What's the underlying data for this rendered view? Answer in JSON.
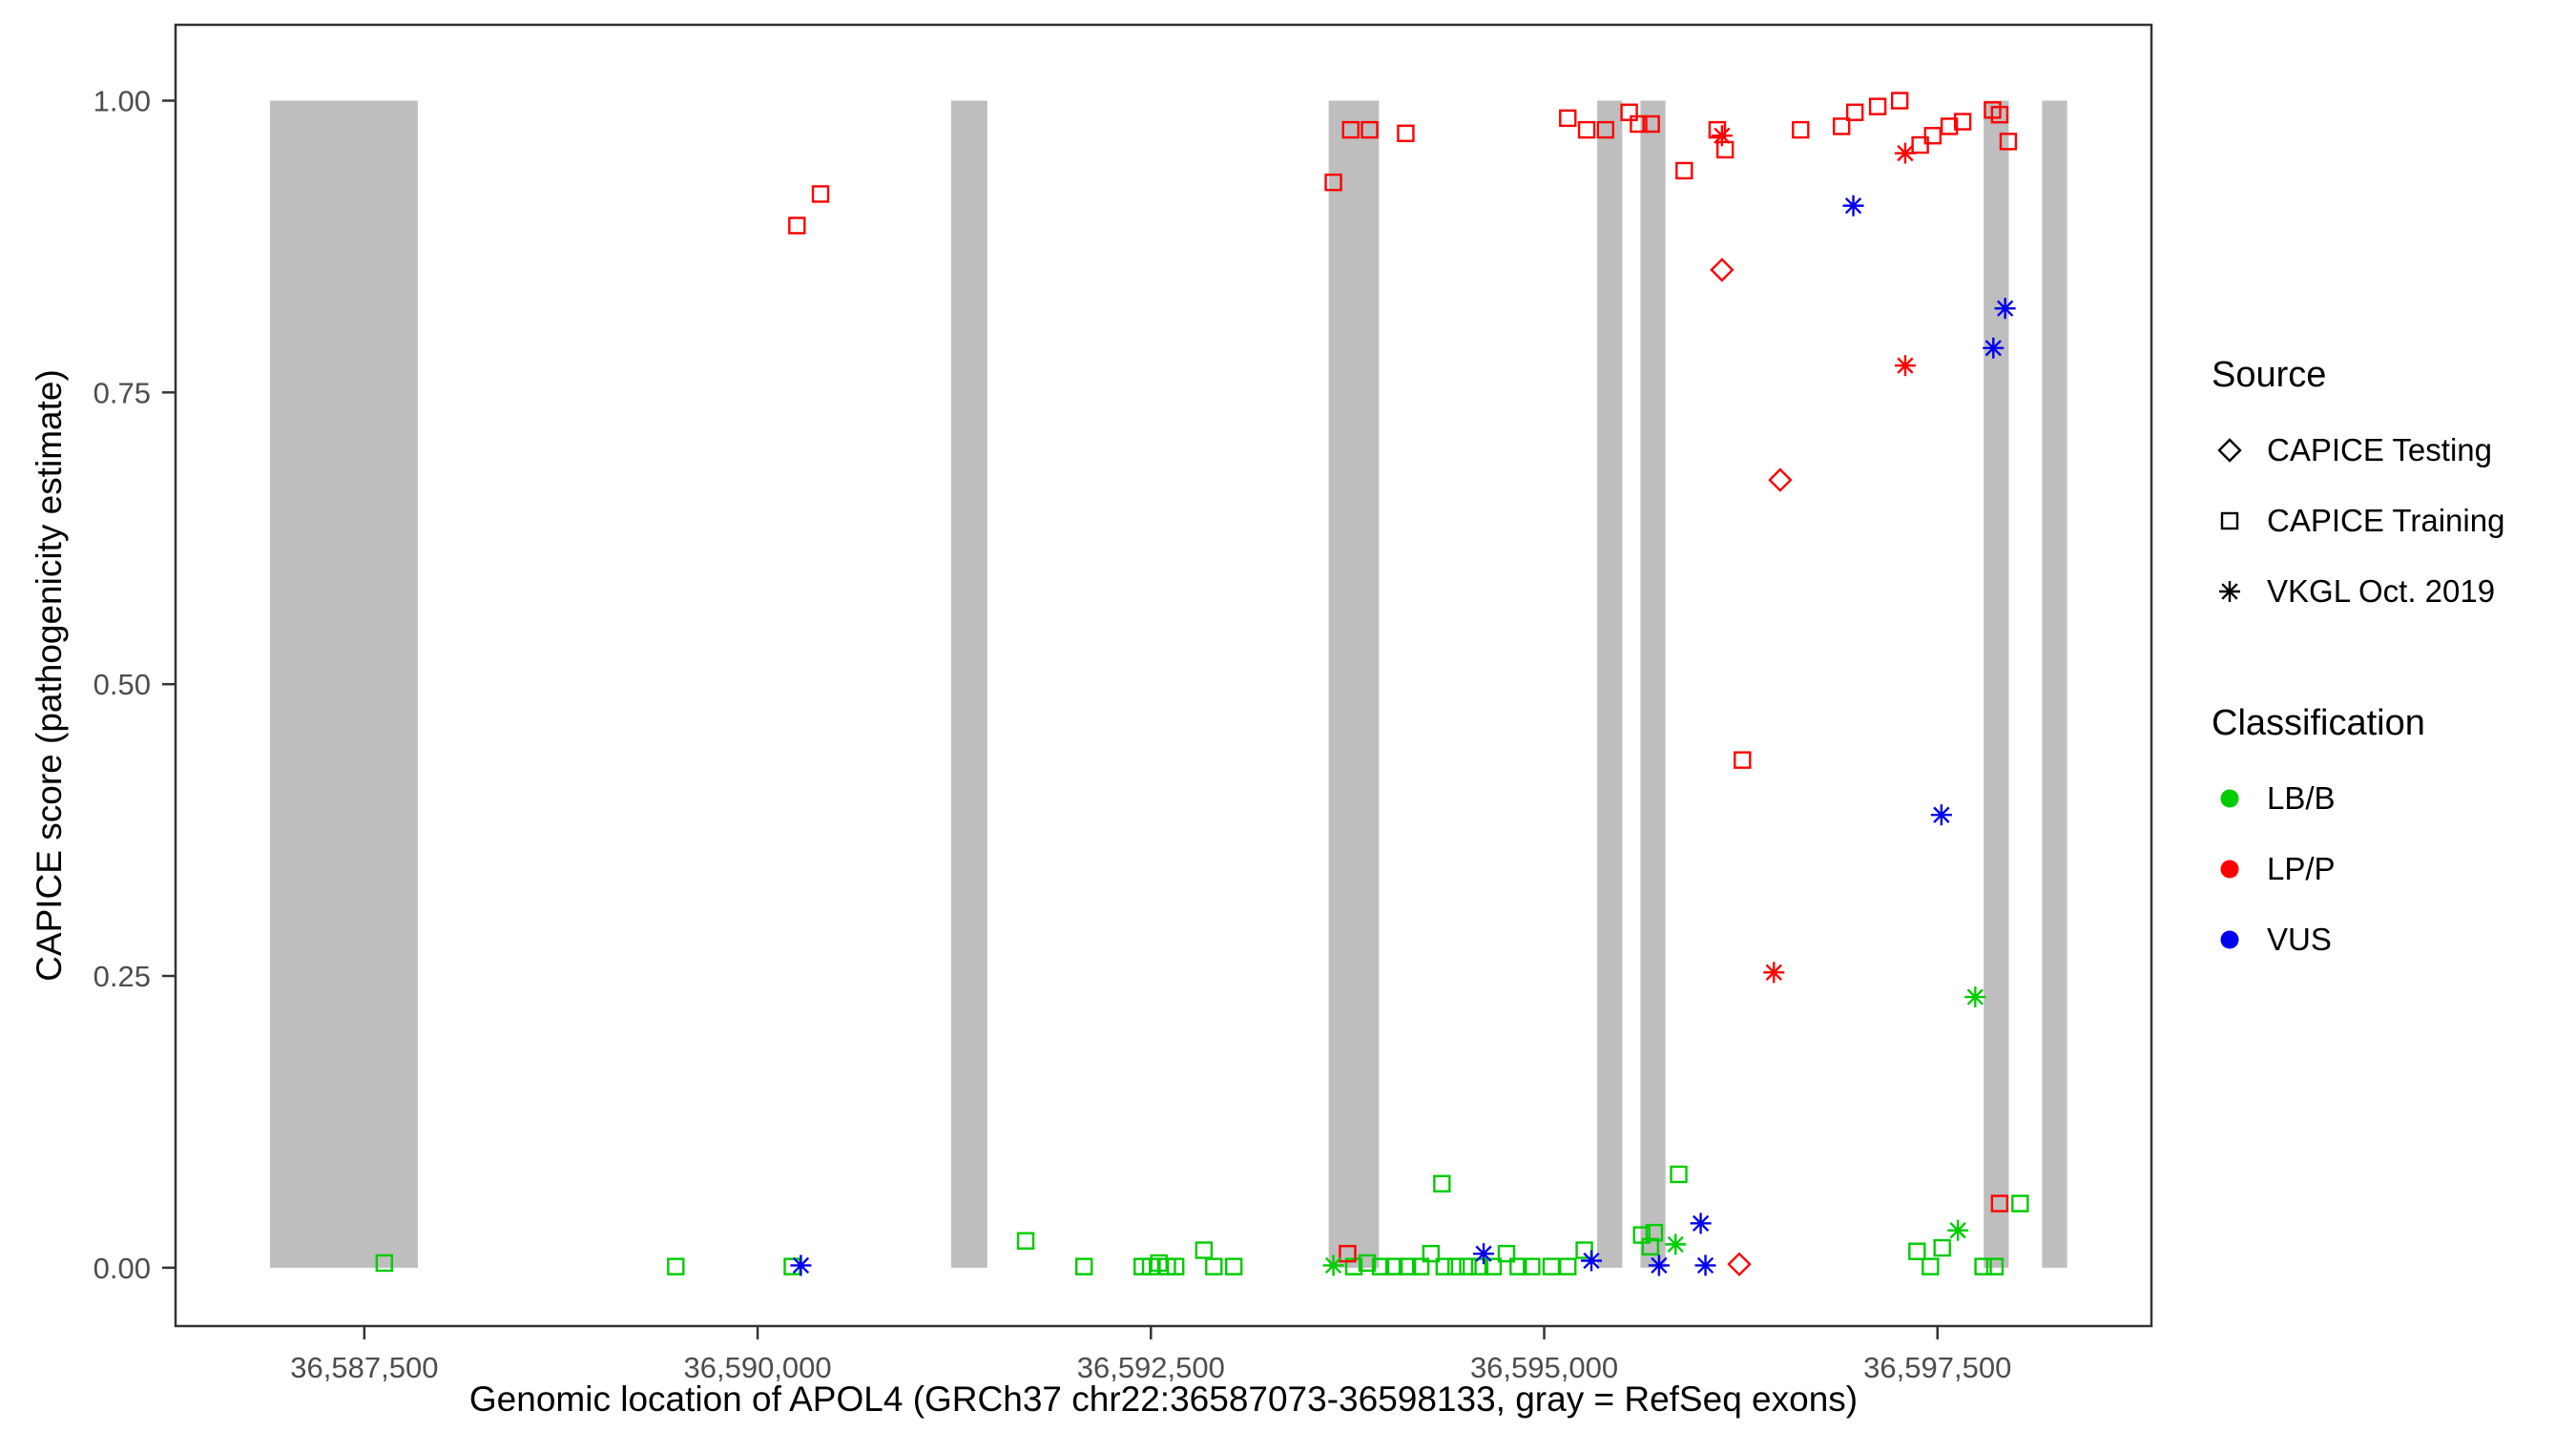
{
  "legend": {
    "source": {
      "title": "Source",
      "items": [
        {
          "label": "CAPICE Testing",
          "shape": "diamond",
          "color": "#000000"
        },
        {
          "label": "CAPICE Training",
          "shape": "square",
          "color": "#000000"
        },
        {
          "label": "VKGL Oct. 2019",
          "shape": "asterisk",
          "color": "#000000"
        }
      ]
    },
    "classification": {
      "title": "Classification",
      "items": [
        {
          "label": "LB/B",
          "shape": "circle",
          "color": "#00CC00"
        },
        {
          "label": "LP/P",
          "shape": "circle",
          "color": "#FF0000"
        },
        {
          "label": "VUS",
          "shape": "circle",
          "color": "#0000EE"
        }
      ]
    }
  },
  "chart_data": {
    "type": "scatter",
    "title": "",
    "xlabel": "Genomic location of APOL4 (GRCh37 chr22:36587073-36598133, gray = RefSeq exons)",
    "ylabel": "CAPICE score (pathogenicity estimate)",
    "xlim": [
      36586300,
      36598860
    ],
    "ylim": [
      -0.05,
      1.065
    ],
    "grid": false,
    "legend_position": "right",
    "x_ticks": [
      {
        "value": 36587500,
        "label": "36,587,500"
      },
      {
        "value": 36590000,
        "label": "36,590,000"
      },
      {
        "value": 36592500,
        "label": "36,592,500"
      },
      {
        "value": 36595000,
        "label": "36,595,000"
      },
      {
        "value": 36597500,
        "label": "36,597,500"
      }
    ],
    "y_ticks": [
      {
        "value": 0.0,
        "label": "0.00"
      },
      {
        "value": 0.25,
        "label": "0.25"
      },
      {
        "value": 0.5,
        "label": "0.50"
      },
      {
        "value": 0.75,
        "label": "0.75"
      },
      {
        "value": 1.0,
        "label": "1.00"
      }
    ],
    "exon_color": "#BEBEBE",
    "refseq_exons": [
      [
        36586900,
        36587840
      ],
      [
        36591230,
        36591460
      ],
      [
        36593630,
        36593950
      ],
      [
        36595337,
        36595496
      ],
      [
        36595612,
        36595771
      ],
      [
        36597794,
        36597953
      ],
      [
        36598165,
        36598324
      ]
    ],
    "series": [
      {
        "name": "CAPICE Training / LB/B",
        "source": "CAPICE Training",
        "classification": "LB/B",
        "shape": "square",
        "color": "#00CC00",
        "points": [
          [
            36587627,
            0.004
          ],
          [
            36589480,
            0.001
          ],
          [
            36590221,
            0.001
          ],
          [
            36591704,
            0.023
          ],
          [
            36592075,
            0.001
          ],
          [
            36592445,
            0.001
          ],
          [
            36592498,
            0.001
          ],
          [
            36592551,
            0.004
          ],
          [
            36592604,
            0.001
          ],
          [
            36592657,
            0.001
          ],
          [
            36592837,
            0.015
          ],
          [
            36592900,
            0.001
          ],
          [
            36593027,
            0.001
          ],
          [
            36593790,
            0.001
          ],
          [
            36593875,
            0.004
          ],
          [
            36593960,
            0.001
          ],
          [
            36594045,
            0.001
          ],
          [
            36594130,
            0.001
          ],
          [
            36594215,
            0.001
          ],
          [
            36594280,
            0.012
          ],
          [
            36594350,
            0.072
          ],
          [
            36594365,
            0.001
          ],
          [
            36594440,
            0.001
          ],
          [
            36594515,
            0.001
          ],
          [
            36594590,
            0.001
          ],
          [
            36594675,
            0.001
          ],
          [
            36594760,
            0.012
          ],
          [
            36594835,
            0.001
          ],
          [
            36594920,
            0.001
          ],
          [
            36595045,
            0.001
          ],
          [
            36595150,
            0.001
          ],
          [
            36595255,
            0.015
          ],
          [
            36595620,
            0.028
          ],
          [
            36595675,
            0.018
          ],
          [
            36595700,
            0.03
          ],
          [
            36595855,
            0.08
          ],
          [
            36597370,
            0.014
          ],
          [
            36597455,
            0.001
          ],
          [
            36597530,
            0.017
          ],
          [
            36597790,
            0.001
          ],
          [
            36597865,
            0.001
          ],
          [
            36598025,
            0.055
          ]
        ]
      },
      {
        "name": "CAPICE Training / LP/P",
        "source": "CAPICE Training",
        "classification": "LP/P",
        "shape": "square",
        "color": "#FF0000",
        "points": [
          [
            36590250,
            0.893
          ],
          [
            36590400,
            0.92
          ],
          [
            36593660,
            0.93
          ],
          [
            36593770,
            0.975
          ],
          [
            36593890,
            0.975
          ],
          [
            36594120,
            0.972
          ],
          [
            36593750,
            0.012
          ],
          [
            36595150,
            0.985
          ],
          [
            36595270,
            0.975
          ],
          [
            36595390,
            0.975
          ],
          [
            36595540,
            0.99
          ],
          [
            36595600,
            0.98
          ],
          [
            36595680,
            0.98
          ],
          [
            36595890,
            0.94
          ],
          [
            36596100,
            0.975
          ],
          [
            36596150,
            0.958
          ],
          [
            36596260,
            0.435
          ],
          [
            36596630,
            0.975
          ],
          [
            36596890,
            0.978
          ],
          [
            36596975,
            0.99
          ],
          [
            36597120,
            0.995
          ],
          [
            36597260,
            1.0
          ],
          [
            36597390,
            0.962
          ],
          [
            36597470,
            0.97
          ],
          [
            36597575,
            0.978
          ],
          [
            36597660,
            0.982
          ],
          [
            36597850,
            0.992
          ],
          [
            36597895,
            0.988
          ],
          [
            36597950,
            0.965
          ],
          [
            36597895,
            0.055
          ]
        ]
      },
      {
        "name": "CAPICE Testing / LP/P",
        "source": "CAPICE Testing",
        "classification": "LP/P",
        "shape": "diamond",
        "color": "#FF0000",
        "points": [
          [
            36596130,
            0.855
          ],
          [
            36596500,
            0.675
          ],
          [
            36596240,
            0.003
          ]
        ]
      },
      {
        "name": "VKGL Oct. 2019 / LB/B",
        "source": "VKGL Oct. 2019",
        "classification": "LB/B",
        "shape": "asterisk",
        "color": "#00CC00",
        "points": [
          [
            36593660,
            0.002
          ],
          [
            36595835,
            0.02
          ],
          [
            36597740,
            0.232
          ],
          [
            36597630,
            0.032
          ]
        ]
      },
      {
        "name": "VKGL Oct. 2019 / LP/P",
        "source": "VKGL Oct. 2019",
        "classification": "LP/P",
        "shape": "asterisk",
        "color": "#FF0000",
        "points": [
          [
            36596130,
            0.97
          ],
          [
            36597295,
            0.955
          ],
          [
            36597295,
            0.773
          ],
          [
            36596460,
            0.253
          ]
        ]
      },
      {
        "name": "VKGL Oct. 2019 / VUS",
        "source": "VKGL Oct. 2019",
        "classification": "VUS",
        "shape": "asterisk",
        "color": "#0000EE",
        "points": [
          [
            36596965,
            0.91
          ],
          [
            36597930,
            0.822
          ],
          [
            36597855,
            0.788
          ],
          [
            36597525,
            0.388
          ],
          [
            36590275,
            0.002
          ],
          [
            36594615,
            0.012
          ],
          [
            36595300,
            0.006
          ],
          [
            36595730,
            0.002
          ],
          [
            36595995,
            0.038
          ],
          [
            36596025,
            0.002
          ]
        ]
      }
    ]
  }
}
